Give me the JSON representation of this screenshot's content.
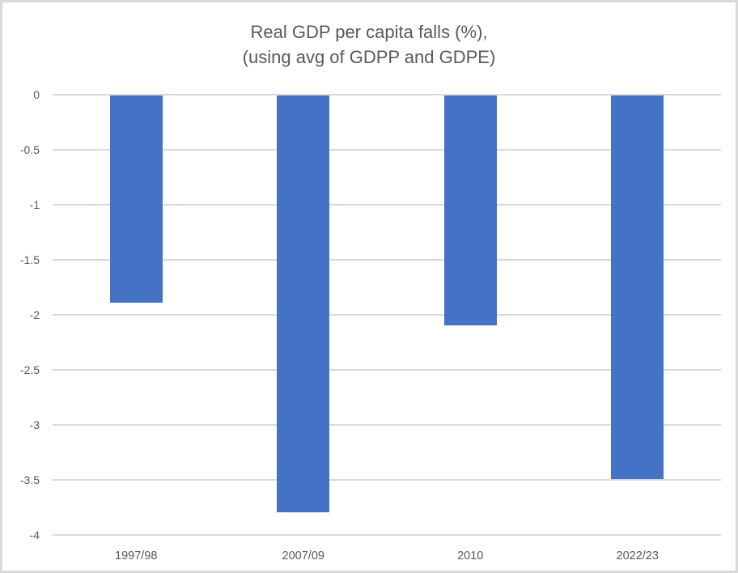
{
  "chart": {
    "title_line1": "Real GDP per capita falls (%),",
    "title_line2": "(using avg of GDPP and GDPE)"
  },
  "chart_data": {
    "type": "bar",
    "title": "Real GDP per capita falls (%), (using avg of GDPP and GDPE)",
    "categories": [
      "1997/98",
      "2007/09",
      "2010",
      "2022/23"
    ],
    "values": [
      -1.9,
      -3.8,
      -2.1,
      -3.5
    ],
    "xlabel": "",
    "ylabel": "",
    "ylim": [
      -4,
      0
    ],
    "yticks": [
      0,
      -0.5,
      -1,
      -1.5,
      -2,
      -2.5,
      -3,
      -3.5,
      -4
    ],
    "ytick_labels": [
      "0",
      "-0.5",
      "-1",
      "-1.5",
      "-2",
      "-2.5",
      "-3",
      "-3.5",
      "-4"
    ],
    "grid": true,
    "legend": false,
    "colors": {
      "bar": "#4472C4",
      "gridline": "#D9D9D9",
      "text": "#595959",
      "border": "#D9D9D9",
      "background": "#FFFFFF"
    }
  }
}
